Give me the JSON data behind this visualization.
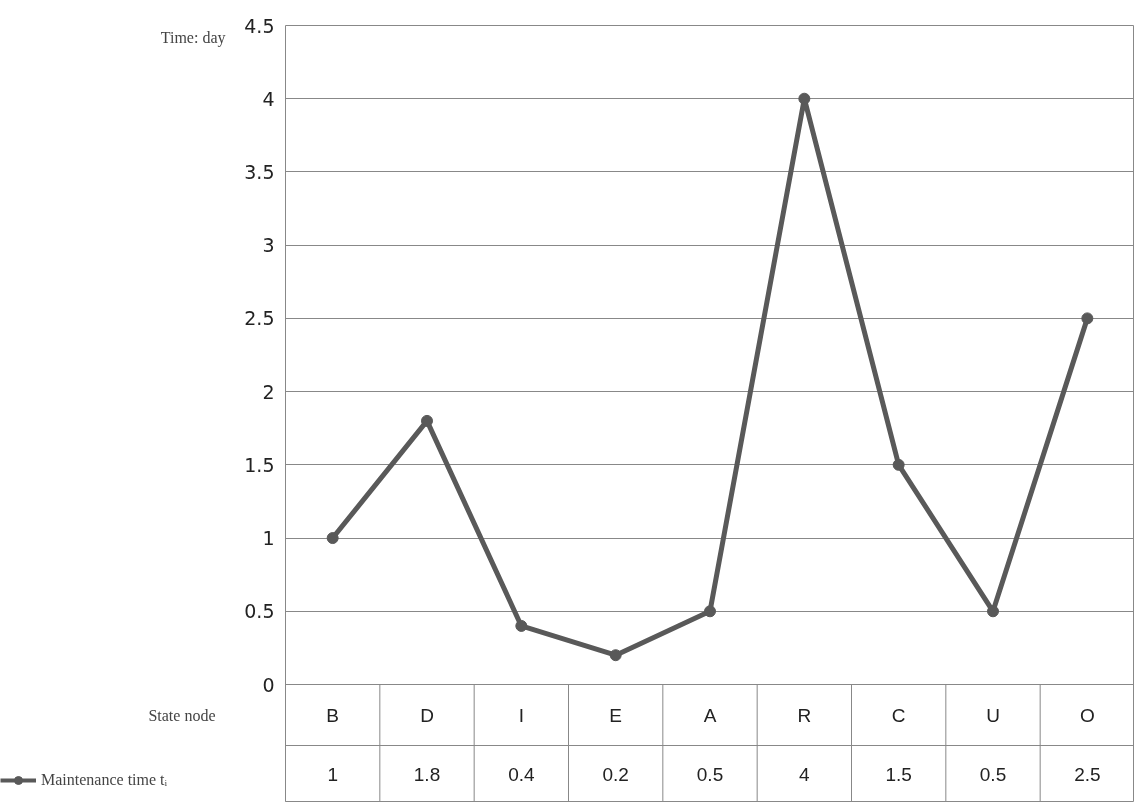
{
  "chart_data": {
    "type": "line",
    "ylabel": "Time: day",
    "xlabel": "State node",
    "categories": [
      "B",
      "D",
      "I",
      "E",
      "A",
      "R",
      "C",
      "U",
      "O"
    ],
    "series": [
      {
        "name": "Maintenance time tᵢ",
        "color": "#595959",
        "values": [
          1,
          1.8,
          0.4,
          0.2,
          0.5,
          4,
          1.5,
          0.5,
          2.5
        ]
      }
    ],
    "ylim": [
      0,
      4.5
    ],
    "yticks": [
      0,
      0.5,
      1,
      1.5,
      2,
      2.5,
      3,
      3.5,
      4,
      4.5
    ],
    "grid": "y",
    "marker": "circle",
    "line_style": "solid",
    "data_labels": true,
    "legend": "bottom left"
  }
}
